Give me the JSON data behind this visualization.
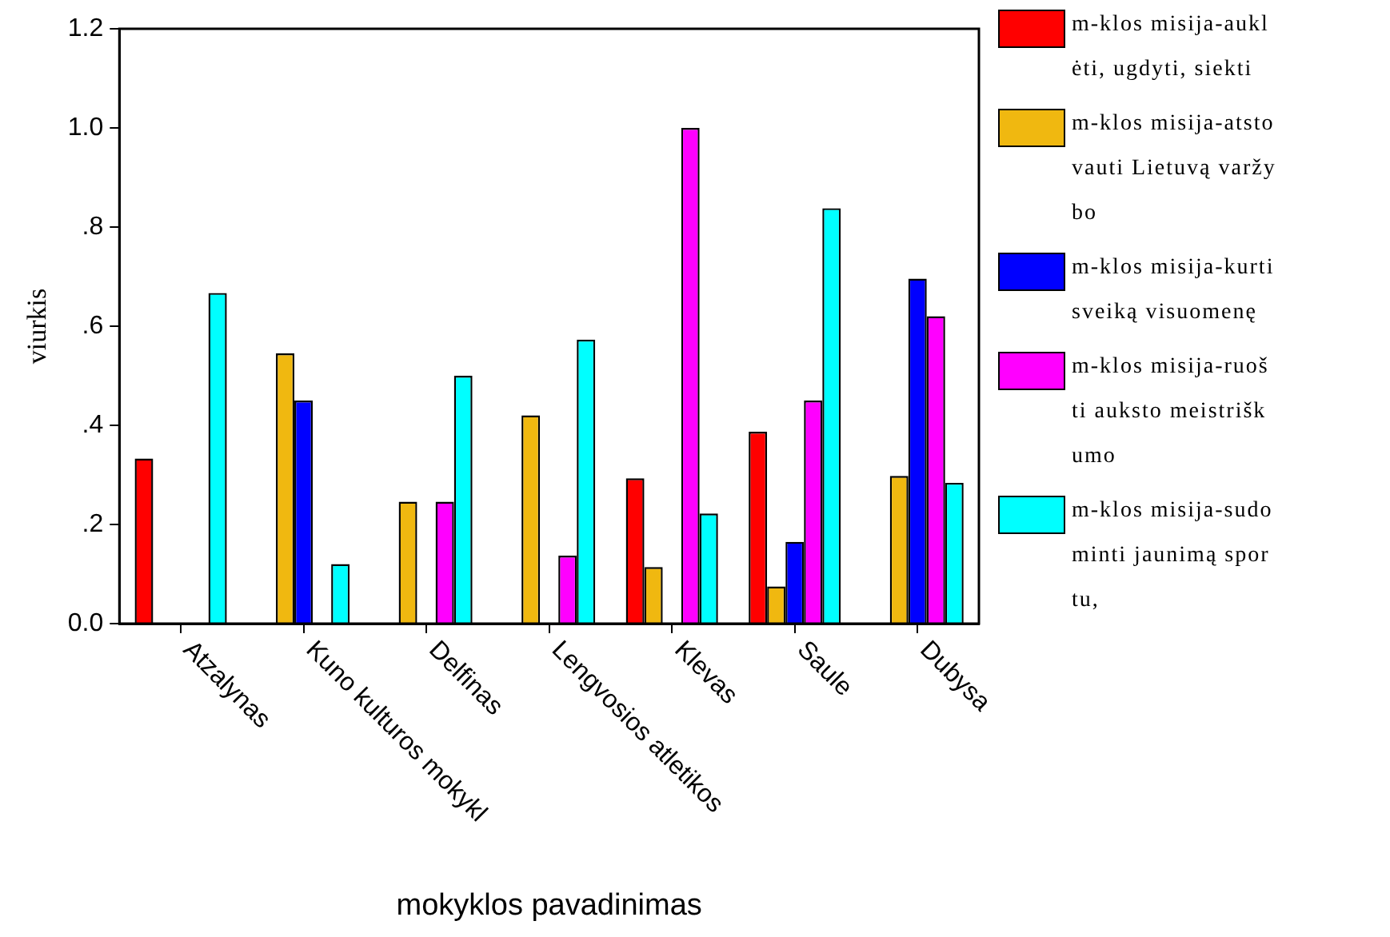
{
  "chart_data": {
    "type": "bar",
    "xlabel": "mokyklos pavadinimas",
    "ylabel": "viurkis",
    "categories": [
      "Atzalynas",
      "Kuno kulturos mokykl",
      "Delfinas",
      "Lengvosios atletikos",
      "Klevas",
      "Saule",
      "Dubysa"
    ],
    "series": [
      {
        "name": "m-klos misija-auklėti, ugdyti, siekti",
        "color": "#ff0000",
        "values": [
          0.333,
          0,
          0,
          0,
          0.293,
          0.387,
          0
        ]
      },
      {
        "name": "m-klos misija-atstovauti Lietuvą varžybo",
        "color": "#f0b810",
        "values": [
          0,
          0.545,
          0.246,
          0.42,
          0.114,
          0.075,
          0.298
        ]
      },
      {
        "name": "m-klos misija-kurti sveiką visuomenę",
        "color": "#0000ff",
        "values": [
          0,
          0.45,
          0,
          0,
          0,
          0.165,
          0.696
        ]
      },
      {
        "name": "m-klos misija-ruošti auksto meistriškumo",
        "color": "#ff00ff",
        "values": [
          0,
          0,
          0.246,
          0.137,
          1.0,
          0.45,
          0.62
        ]
      },
      {
        "name": "m-klos misija-sudominti jaunimą sportu,",
        "color": "#00ffff",
        "values": [
          0.667,
          0.12,
          0.5,
          0.573,
          0.222,
          0.838,
          0.284
        ]
      }
    ],
    "ylim": [
      0,
      1.2
    ],
    "yticks": [
      {
        "value": 0,
        "label": "0.0"
      },
      {
        "value": 0.2,
        "label": ".2"
      },
      {
        "value": 0.4,
        "label": ".4"
      },
      {
        "value": 0.6,
        "label": ".6"
      },
      {
        "value": 0.8,
        "label": ".8"
      },
      {
        "value": 1.0,
        "label": "1.0"
      },
      {
        "value": 1.2,
        "label": "1.2"
      }
    ],
    "grid": false,
    "legend": "right"
  }
}
